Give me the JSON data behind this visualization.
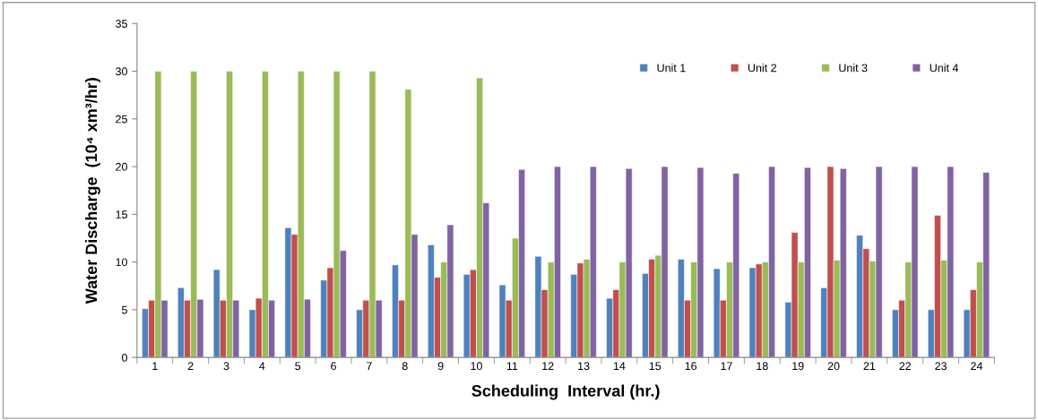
{
  "chart_data": {
    "type": "bar",
    "xlabel": "Scheduling  Interval (hr.)",
    "ylabel": "Water Discharge  (10⁴ xm³/hr)",
    "categories": [
      "1",
      "2",
      "3",
      "4",
      "5",
      "6",
      "7",
      "8",
      "9",
      "10",
      "11",
      "12",
      "13",
      "14",
      "15",
      "16",
      "17",
      "18",
      "19",
      "20",
      "21",
      "22",
      "23",
      "24"
    ],
    "series": [
      {
        "name": "Unit 1",
        "color": "#4f81bd",
        "values": [
          5.1,
          7.3,
          9.2,
          5.0,
          13.6,
          8.1,
          5.0,
          9.7,
          11.8,
          8.7,
          7.6,
          10.6,
          8.7,
          6.2,
          8.8,
          10.3,
          9.3,
          9.4,
          5.8,
          7.3,
          12.8,
          5.0,
          5.0,
          5.0
        ]
      },
      {
        "name": "Unit 2",
        "color": "#c0504d",
        "values": [
          6,
          6,
          6,
          6.2,
          12.9,
          9.4,
          6,
          6,
          8.4,
          9.2,
          6,
          7.1,
          9.9,
          7.1,
          10.3,
          6,
          6,
          9.8,
          13.1,
          20,
          11.4,
          6,
          14.9,
          7.1
        ]
      },
      {
        "name": "Unit 3",
        "color": "#9bbb59",
        "values": [
          30,
          30,
          30,
          30,
          30,
          30,
          30,
          28.1,
          10,
          29.3,
          12.5,
          10,
          10.3,
          10,
          10.7,
          10,
          10,
          10,
          10,
          10.2,
          10.1,
          10,
          10.2,
          10
        ]
      },
      {
        "name": "Unit 4",
        "color": "#8064a2",
        "values": [
          6,
          6.1,
          6,
          6,
          6.1,
          11.2,
          6,
          12.9,
          13.9,
          16.2,
          19.7,
          20,
          20,
          19.8,
          20,
          19.9,
          19.3,
          20,
          19.9,
          19.8,
          20,
          20,
          20,
          19.4
        ]
      }
    ],
    "ylim": [
      0,
      35
    ],
    "yticks": [
      0,
      5,
      10,
      15,
      20,
      25,
      30,
      35
    ],
    "grid": false,
    "legend": "top right"
  }
}
